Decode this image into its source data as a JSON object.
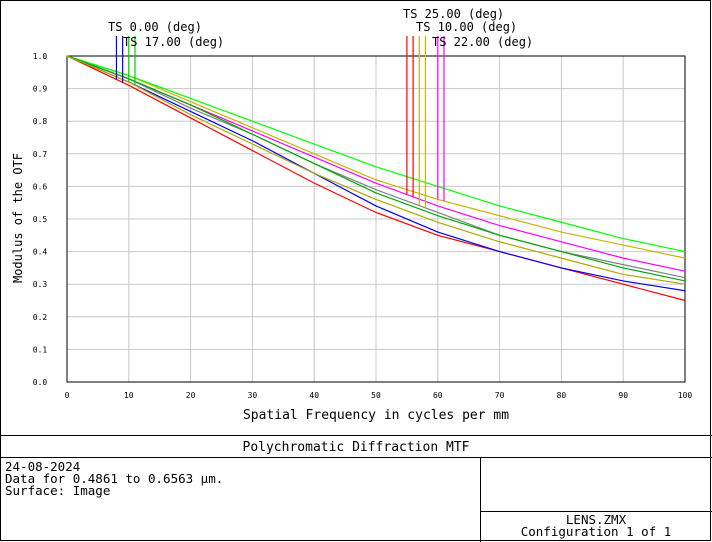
{
  "chart_data": {
    "type": "line",
    "title": "Polychromatic Diffraction MTF",
    "xlabel": "Spatial Frequency in cycles per mm",
    "ylabel": "Modulus of the OTF",
    "xlim": [
      0,
      100
    ],
    "ylim": [
      0,
      1
    ],
    "xticks": [
      "0",
      "10",
      "20",
      "30",
      "40",
      "50",
      "60",
      "70",
      "80",
      "90",
      "100"
    ],
    "yticks": [
      "0.0",
      "0.1",
      "0.2",
      "0.3",
      "0.4",
      "0.5",
      "0.6",
      "0.7",
      "0.8",
      "0.9",
      "1.0"
    ],
    "grid": true,
    "x": [
      0,
      10,
      20,
      30,
      40,
      50,
      60,
      70,
      80,
      90,
      100
    ],
    "series": [
      {
        "color": "#ff0000",
        "values": [
          1.0,
          0.91,
          0.81,
          0.71,
          0.61,
          0.52,
          0.45,
          0.4,
          0.35,
          0.3,
          0.25
        ]
      },
      {
        "color": "#0000ff",
        "values": [
          1.0,
          0.92,
          0.83,
          0.74,
          0.64,
          0.54,
          0.46,
          0.4,
          0.35,
          0.31,
          0.28
        ]
      },
      {
        "color": "#ff00ff",
        "values": [
          1.0,
          0.93,
          0.85,
          0.77,
          0.69,
          0.61,
          0.54,
          0.48,
          0.43,
          0.38,
          0.34
        ]
      },
      {
        "color": "#808080",
        "values": [
          1.0,
          0.93,
          0.84,
          0.76,
          0.67,
          0.59,
          0.52,
          0.45,
          0.4,
          0.36,
          0.32
        ]
      },
      {
        "color": "#c8b400",
        "values": [
          1.0,
          0.94,
          0.86,
          0.78,
          0.7,
          0.62,
          0.56,
          0.51,
          0.46,
          0.42,
          0.38
        ]
      },
      {
        "color": "#00ff00",
        "values": [
          1.0,
          0.94,
          0.87,
          0.8,
          0.73,
          0.66,
          0.6,
          0.54,
          0.49,
          0.44,
          0.4
        ]
      },
      {
        "color": "#00aa00",
        "values": [
          1.0,
          0.93,
          0.85,
          0.76,
          0.67,
          0.58,
          0.51,
          0.45,
          0.4,
          0.35,
          0.31
        ]
      },
      {
        "color": "#aaaa00",
        "values": [
          1.0,
          0.92,
          0.82,
          0.73,
          0.64,
          0.56,
          0.49,
          0.43,
          0.38,
          0.33,
          0.3
        ]
      }
    ],
    "field_markers": [
      {
        "label": "TS 0.00 (deg)",
        "colors": [
          "#0000ff",
          "#0000ff"
        ],
        "x": [
          8.0,
          9.0
        ]
      },
      {
        "label": "TS 17.00 (deg)",
        "colors": [
          "#00cc00",
          "#00cc00"
        ],
        "x": [
          10.0,
          11.0
        ]
      },
      {
        "label": "TS 25.00 (deg)",
        "colors": [
          "#ff0000",
          "#ff0000"
        ],
        "x": [
          55.0,
          56.0
        ]
      },
      {
        "label": "TS 10.00 (deg)",
        "colors": [
          "#c8b400",
          "#c8b400"
        ],
        "x": [
          57.0,
          58.0
        ]
      },
      {
        "label": "TS 22.00 (deg)",
        "colors": [
          "#ff00ff",
          "#ff00ff"
        ],
        "x": [
          60.0,
          61.0
        ]
      }
    ]
  },
  "info": {
    "date": "24-08-2024",
    "data_range": "Data for 0.4861 to 0.6563 µm.",
    "surface": "Surface: Image"
  },
  "file": {
    "name": "LENS.ZMX",
    "config": "Configuration 1 of 1"
  }
}
